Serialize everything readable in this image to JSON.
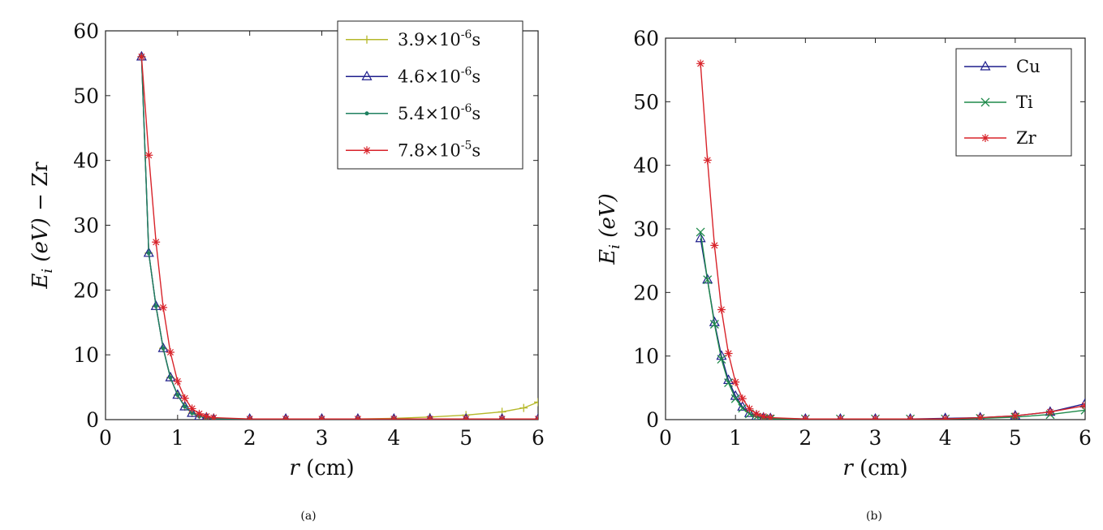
{
  "chart_data": [
    {
      "type": "line",
      "caption": "(a)",
      "xlabel": {
        "var": "r",
        "unit": "(cm)"
      },
      "ylabel": {
        "sym": "E",
        "sub": "i",
        "unit": "(eV)",
        "suffix": "− Zr"
      },
      "xlim": [
        0,
        6
      ],
      "ylim": [
        0,
        60
      ],
      "xticks": [
        "0",
        "1",
        "2",
        "3",
        "4",
        "5",
        "6"
      ],
      "yticks": [
        "0",
        "10",
        "20",
        "30",
        "40",
        "50",
        "60"
      ],
      "grid": false,
      "legend_position": "top-right",
      "series": [
        {
          "name": "3.9×10⁻⁶s",
          "mantissa": "3.9",
          "exp": "-6",
          "color": "#b5b82a",
          "marker": "plus",
          "x": [
            0.5,
            0.6,
            0.7,
            0.8,
            0.9,
            1.0,
            1.1,
            1.2,
            1.3,
            1.4,
            1.5,
            2.0,
            2.5,
            3.0,
            3.5,
            4.0,
            4.5,
            5.0,
            5.5,
            5.8,
            6.0
          ],
          "y": [
            56,
            25.7,
            17.5,
            11,
            6.5,
            3.8,
            2.0,
            1.0,
            0.5,
            0.3,
            0.2,
            0.1,
            0.1,
            0.1,
            0.1,
            0.2,
            0.4,
            0.7,
            1.2,
            1.8,
            2.7
          ]
        },
        {
          "name": "4.6×10⁻⁶s",
          "mantissa": "4.6",
          "exp": "-6",
          "color": "#1e1e8c",
          "marker": "triangle",
          "x": [
            0.5,
            0.6,
            0.7,
            0.8,
            0.9,
            1.0,
            1.1,
            1.2,
            1.3,
            1.4,
            1.5,
            2.0,
            2.5,
            3.0,
            3.5,
            4.0,
            4.5,
            5.0,
            5.5,
            6.0
          ],
          "y": [
            56,
            25.7,
            17.5,
            11,
            6.5,
            3.8,
            2.0,
            1.0,
            0.5,
            0.3,
            0.1,
            0.1,
            0.1,
            0.1,
            0.1,
            0.1,
            0.1,
            0.1,
            0.1,
            0.1
          ]
        },
        {
          "name": "5.4×10⁻⁶s",
          "mantissa": "5.4",
          "exp": "-6",
          "color": "#1f8060",
          "marker": "dot",
          "x": [
            0.5,
            0.6,
            0.7,
            0.8,
            0.9,
            1.0,
            1.1,
            1.2,
            1.3,
            1.4,
            1.5,
            2.0,
            2.5,
            3.0,
            3.5,
            4.0,
            4.5,
            5.0,
            5.5,
            6.0
          ],
          "y": [
            56,
            25.7,
            17.5,
            11,
            6.5,
            3.8,
            2.0,
            1.0,
            0.5,
            0.3,
            0.1,
            0.1,
            0.1,
            0.1,
            0.1,
            0.1,
            0.1,
            0.1,
            0.1,
            0.1
          ]
        },
        {
          "name": "7.8×10⁻⁵s",
          "mantissa": "7.8",
          "exp": "-5",
          "color": "#d8232a",
          "marker": "star",
          "x": [
            0.5,
            0.6,
            0.7,
            0.8,
            0.9,
            1.0,
            1.1,
            1.2,
            1.3,
            1.4,
            1.5,
            2.0,
            2.5,
            3.0,
            3.5,
            4.0,
            4.5,
            5.0,
            5.5,
            6.0
          ],
          "y": [
            56,
            40.8,
            27.4,
            17.3,
            10.4,
            5.9,
            3.3,
            1.7,
            0.9,
            0.5,
            0.3,
            0.1,
            0.1,
            0.1,
            0.1,
            0.1,
            0.1,
            0.1,
            0.1,
            0.1
          ]
        }
      ]
    },
    {
      "type": "line",
      "caption": "(b)",
      "xlabel": {
        "var": "r",
        "unit": "(cm)"
      },
      "ylabel": {
        "sym": "E",
        "sub": "i",
        "unit": "(eV)",
        "suffix": ""
      },
      "xlim": [
        0,
        6
      ],
      "ylim": [
        0,
        60
      ],
      "xticks": [
        "0",
        "1",
        "2",
        "3",
        "4",
        "5",
        "6"
      ],
      "yticks": [
        "0",
        "10",
        "20",
        "30",
        "40",
        "50",
        "60"
      ],
      "grid": false,
      "legend_position": "top-right",
      "series": [
        {
          "name": "Cu",
          "color": "#1e1e8c",
          "marker": "triangle",
          "x": [
            0.5,
            0.6,
            0.7,
            0.8,
            0.9,
            1.0,
            1.1,
            1.2,
            1.3,
            1.4,
            1.5,
            2.0,
            2.5,
            3.0,
            3.5,
            4.0,
            4.5,
            5.0,
            5.5,
            6.0
          ],
          "y": [
            28.5,
            22,
            15.3,
            10,
            6.2,
            3.7,
            2.0,
            1.0,
            0.5,
            0.3,
            0.2,
            0.1,
            0.1,
            0.1,
            0.1,
            0.2,
            0.3,
            0.6,
            1.2,
            2.5
          ]
        },
        {
          "name": "Ti",
          "color": "#1f8a4a",
          "marker": "x",
          "x": [
            0.5,
            0.6,
            0.7,
            0.8,
            0.9,
            1.0,
            1.1,
            1.2,
            1.3,
            1.4,
            1.5,
            2.0,
            2.5,
            3.0,
            3.5,
            4.0,
            4.5,
            5.0,
            5.5,
            6.0
          ],
          "y": [
            29.5,
            22,
            15,
            9.5,
            5.8,
            3.3,
            1.8,
            0.9,
            0.4,
            0.2,
            0.1,
            0.1,
            0.1,
            0.1,
            0.1,
            0.1,
            0.2,
            0.4,
            0.8,
            1.5
          ]
        },
        {
          "name": "Zr",
          "color": "#d8232a",
          "marker": "star",
          "x": [
            0.5,
            0.6,
            0.7,
            0.8,
            0.9,
            1.0,
            1.1,
            1.2,
            1.3,
            1.4,
            1.5,
            2.0,
            2.5,
            3.0,
            3.5,
            4.0,
            4.5,
            5.0,
            5.5,
            6.0
          ],
          "y": [
            56,
            40.8,
            27.4,
            17.3,
            10.4,
            5.9,
            3.3,
            1.7,
            0.9,
            0.5,
            0.3,
            0.1,
            0.1,
            0.1,
            0.1,
            0.1,
            0.3,
            0.6,
            1.2,
            2.2
          ]
        }
      ]
    }
  ]
}
